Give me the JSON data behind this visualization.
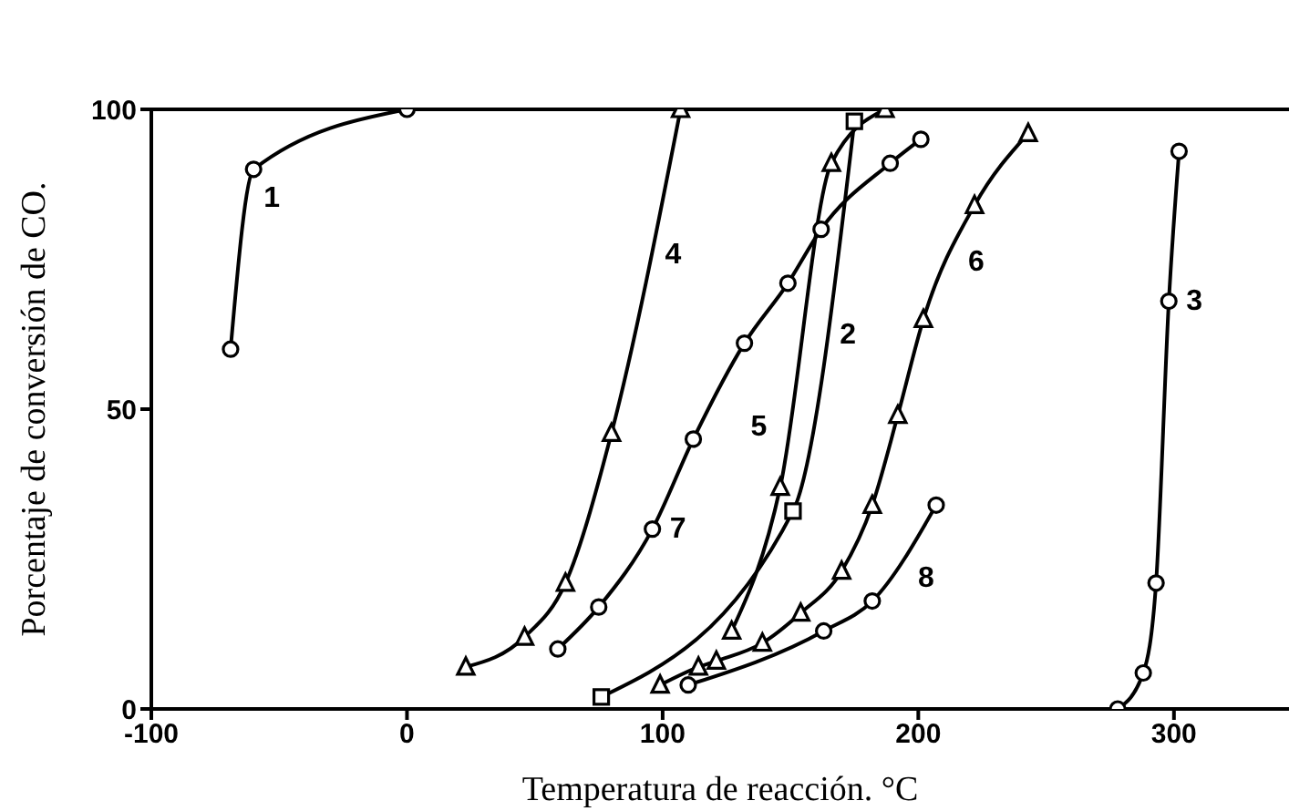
{
  "chart_data": {
    "type": "line",
    "xlabel": "Temperatura de reacción. °C",
    "ylabel": "Porcentaje de conversión de CO.",
    "xlim": [
      -100,
      345
    ],
    "xticks": [
      -100,
      0,
      100,
      200,
      300
    ],
    "ylim": [
      0,
      100
    ],
    "yticks": [
      0,
      50,
      100
    ],
    "line_style": "solid",
    "series": [
      {
        "name": "1",
        "color": "#000000",
        "marker": "circle",
        "x": [
          -69,
          -60,
          0
        ],
        "values": [
          60,
          90,
          100
        ]
      },
      {
        "name": "2",
        "color": "#000000",
        "marker": "square",
        "x": [
          76,
          151,
          175
        ],
        "values": [
          2,
          33,
          98
        ]
      },
      {
        "name": "3",
        "color": "#000000",
        "marker": "circle",
        "x": [
          278,
          288,
          293,
          298,
          302
        ],
        "values": [
          0,
          6,
          21,
          68,
          93
        ]
      },
      {
        "name": "4",
        "color": "#000000",
        "marker": "triangle",
        "x": [
          23,
          46,
          62,
          80,
          107
        ],
        "values": [
          7,
          12,
          21,
          46,
          100
        ]
      },
      {
        "name": "5",
        "color": "#000000",
        "marker": "triangle",
        "x": [
          127,
          146,
          166,
          187
        ],
        "values": [
          13,
          37,
          91,
          100
        ]
      },
      {
        "name": "6",
        "color": "#000000",
        "marker": "triangle",
        "x": [
          99,
          114,
          121,
          139,
          154,
          170,
          182,
          192,
          202,
          222,
          243
        ],
        "values": [
          4,
          7,
          8,
          11,
          16,
          23,
          34,
          49,
          65,
          84,
          96
        ]
      },
      {
        "name": "7",
        "color": "#000000",
        "marker": "circle",
        "x": [
          59,
          75,
          96,
          112,
          132,
          149,
          162,
          189,
          201
        ],
        "values": [
          10,
          17,
          30,
          45,
          61,
          71,
          80,
          91,
          95
        ]
      },
      {
        "name": "8",
        "color": "#000000",
        "marker": "circle",
        "x": [
          110,
          163,
          182,
          207
        ],
        "values": [
          4,
          13,
          18,
          34
        ]
      }
    ]
  }
}
